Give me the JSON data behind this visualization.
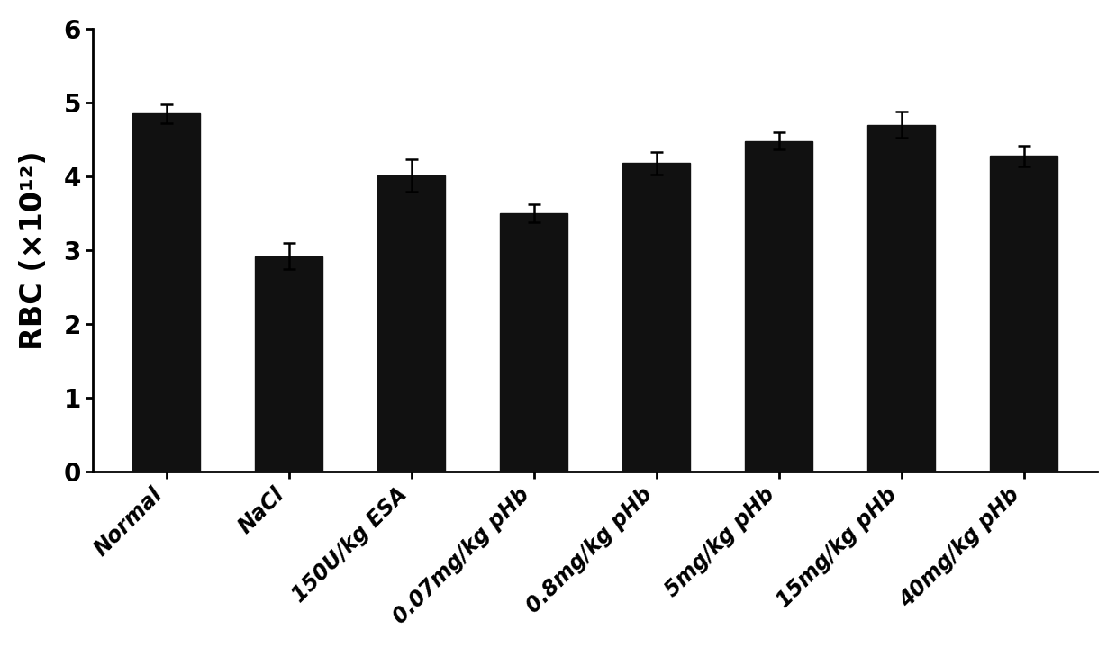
{
  "categories": [
    "Normal",
    "NaCl",
    "150U/kg ESA",
    "0.07mg/kg pHb",
    "0.8mg/kg pHb",
    "5mg/kg pHb",
    "15mg/kg pHb",
    "40mg/kg pHb"
  ],
  "values": [
    4.85,
    2.92,
    4.01,
    3.5,
    4.18,
    4.48,
    4.7,
    4.28
  ],
  "errors": [
    0.13,
    0.18,
    0.22,
    0.12,
    0.15,
    0.12,
    0.18,
    0.14
  ],
  "bar_color": "#111111",
  "bar_edgecolor": "#111111",
  "ylabel": "RBC (×10¹²)",
  "ylim": [
    0,
    6
  ],
  "yticks": [
    0,
    1,
    2,
    3,
    4,
    5,
    6
  ],
  "background_color": "#ffffff",
  "bar_width": 0.55,
  "ylabel_fontsize": 24,
  "tick_fontsize": 20,
  "xtick_fontsize": 17,
  "error_capsize": 5,
  "error_linewidth": 1.8
}
